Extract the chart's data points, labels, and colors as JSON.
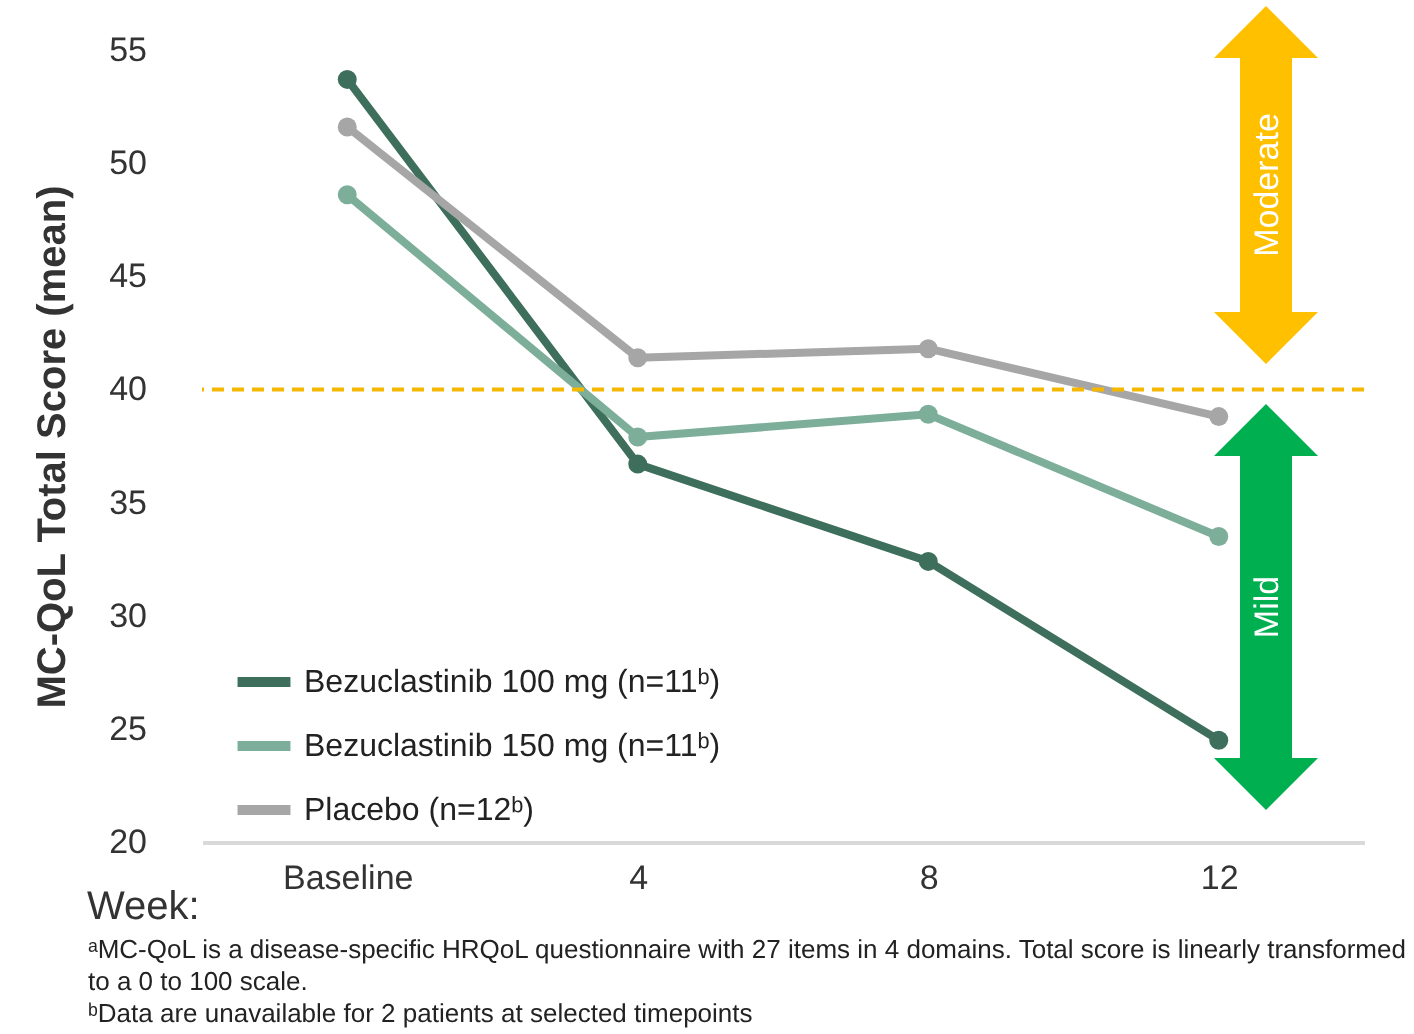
{
  "chart_data": {
    "type": "line",
    "xlabel": "Week:",
    "ylabel": "MC-QoL Total Score (mean)",
    "categories": [
      "Baseline",
      "4",
      "8",
      "12"
    ],
    "series": [
      {
        "name": "Bezuclastinib 100 mg (n=11ᵇ)",
        "color": "#3e6e5c",
        "values": [
          53.7,
          36.7,
          32.4,
          24.5
        ]
      },
      {
        "name": "Bezuclastinib 150 mg (n=11ᵇ)",
        "color": "#7cae9a",
        "values": [
          48.6,
          37.9,
          38.9,
          33.5
        ]
      },
      {
        "name": "Placebo (n=12ᵇ)",
        "color": "#a6a6a6",
        "values": [
          51.6,
          41.4,
          41.8,
          38.8
        ]
      }
    ],
    "ylim": [
      20,
      55
    ],
    "yticks": [
      20,
      25,
      30,
      35,
      40,
      45,
      50,
      55
    ],
    "ref_lines": [
      {
        "axis": "y",
        "value": 40,
        "color": "#f5b800",
        "line_style": "dashed"
      }
    ],
    "annotations": [
      "Moderate",
      "Mild",
      "ᵃMC-QoL is a disease-specific HRQoL questionnaire with 27 items in 4 domains.  Total score is linearly transformed to  a 0 to 100 scale.",
      "ᵇData are unavailable for 2 patients at selected timepoints"
    ],
    "grid": false,
    "legend": "bottom left",
    "marker": "circle",
    "line_style": "solid"
  }
}
